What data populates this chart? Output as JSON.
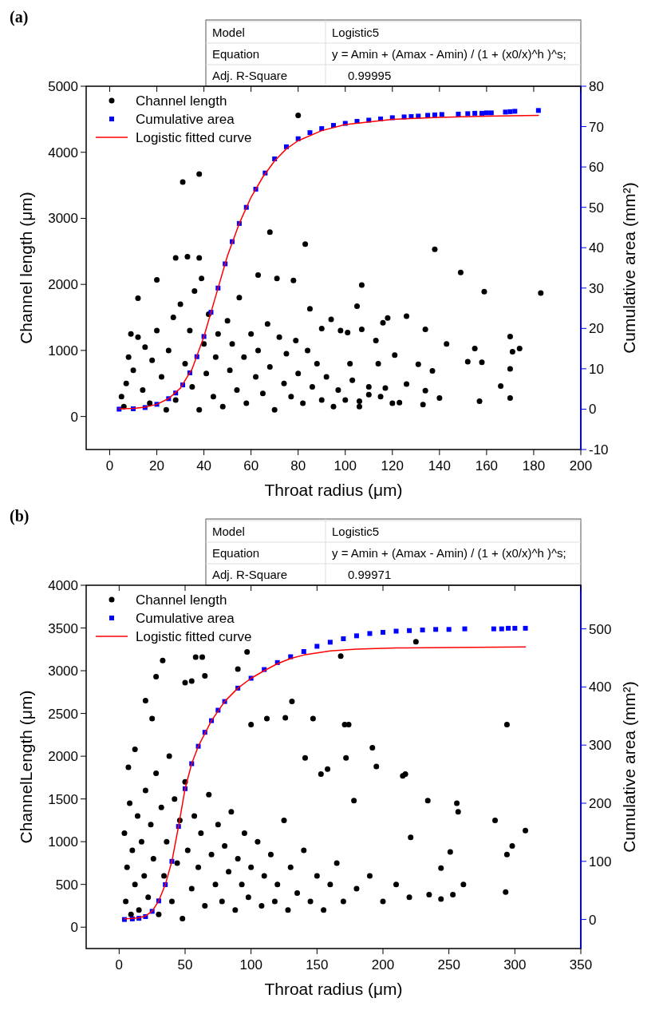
{
  "chart_data": [
    {
      "type": "scatter",
      "title": "(a)",
      "xlabel": "Throat radius (μm)",
      "ylabel": "Channel length (μm)",
      "y2label": "Cumulative area (mm²)",
      "annotations": [
        "Model",
        "Logistic5",
        "Equation",
        "y = Amin + (Amax - Amin) / (1 + (x0/x)^h )^s;",
        "Adj. R-Square",
        "0.99995"
      ],
      "xlim": [
        -10,
        200
      ],
      "xticks": [
        0,
        20,
        40,
        60,
        80,
        100,
        120,
        140,
        160,
        180,
        200
      ],
      "ylim": [
        -500,
        5000
      ],
      "yticks": [
        0,
        1000,
        2000,
        3000,
        4000,
        5000
      ],
      "y2lim": [
        -10,
        80
      ],
      "y2ticks": [
        -10,
        0,
        10,
        20,
        30,
        40,
        50,
        60,
        70,
        80
      ],
      "legend": "top left",
      "series": [
        {
          "name": "Channel length",
          "type": "scatter",
          "marker": "circle",
          "color": "#000000",
          "axis": "y",
          "x": [
            80,
            31,
            38,
            68,
            83,
            138,
            149,
            159,
            183,
            28,
            33,
            38,
            63,
            71,
            78,
            107,
            12,
            20,
            39,
            105,
            85,
            126,
            134,
            118,
            143,
            155,
            170,
            174,
            171,
            170,
            166,
            157,
            170,
            152,
            158,
            137,
            140,
            131,
            134,
            133,
            126,
            121,
            116,
            114,
            113,
            107,
            102,
            101,
            94,
            90,
            98,
            117,
            123,
            106,
            110,
            5,
            6,
            7,
            8,
            9,
            10,
            12,
            14,
            15,
            17,
            18,
            20,
            22,
            24,
            25,
            27,
            28,
            30,
            32,
            34,
            35,
            36,
            38,
            40,
            41,
            42,
            44,
            45,
            46,
            48,
            50,
            51,
            52,
            54,
            55,
            57,
            58,
            60,
            62,
            63,
            65,
            67,
            68,
            70,
            72,
            74,
            75,
            77,
            79,
            80,
            82,
            84,
            86,
            88,
            90,
            92,
            95,
            97,
            100,
            103,
            106,
            110,
            115,
            120
          ],
          "values": [
            4560,
            3550,
            3670,
            2790,
            2610,
            2530,
            2180,
            1890,
            1870,
            2400,
            2420,
            2400,
            2140,
            2090,
            2060,
            1990,
            1790,
            2070,
            2090,
            1670,
            1630,
            1520,
            1320,
            1490,
            1100,
            1030,
            1210,
            1030,
            980,
            720,
            460,
            230,
            280,
            830,
            820,
            690,
            280,
            790,
            390,
            180,
            490,
            930,
            1420,
            800,
            1150,
            1320,
            800,
            1270,
            1470,
            1330,
            1300,
            430,
            210,
            230,
            330,
            300,
            150,
            500,
            900,
            1250,
            700,
            1200,
            400,
            1050,
            200,
            850,
            1300,
            600,
            100,
            1000,
            1500,
            250,
            1700,
            800,
            1300,
            450,
            1900,
            100,
            1100,
            650,
            1550,
            300,
            900,
            1250,
            150,
            1450,
            700,
            1100,
            400,
            1800,
            900,
            200,
            1250,
            600,
            1000,
            350,
            1400,
            750,
            100,
            1200,
            500,
            950,
            300,
            1150,
            650,
            200,
            1000,
            450,
            800,
            250,
            600,
            150,
            400,
            250,
            550,
            150,
            450,
            300,
            200
          ]
        },
        {
          "name": "Cumulative area",
          "type": "scatter",
          "marker": "square",
          "color": "#0000ff",
          "axis": "y2",
          "x": [
            4,
            10,
            15,
            20,
            25,
            28,
            31,
            34,
            37,
            40,
            43,
            46,
            49,
            52,
            55,
            58,
            62,
            66,
            70,
            75,
            80,
            85,
            90,
            95,
            100,
            105,
            110,
            115,
            120,
            125,
            128,
            131,
            135,
            138,
            141,
            148,
            152,
            155,
            158,
            160,
            162,
            168,
            170,
            172,
            182
          ],
          "values": [
            0,
            0.1,
            0.4,
            1.2,
            2.6,
            4,
            6,
            9,
            13,
            18,
            24,
            30,
            36,
            41.5,
            46,
            50,
            54.5,
            58.5,
            62,
            65,
            67,
            68.5,
            69.5,
            70.3,
            70.8,
            71.3,
            71.6,
            71.9,
            72.2,
            72.4,
            72.5,
            72.6,
            72.8,
            72.9,
            73,
            73.1,
            73.2,
            73.3,
            73.3,
            73.4,
            73.4,
            73.6,
            73.7,
            73.8,
            74
          ]
        },
        {
          "name": "Logistic fitted curve",
          "type": "line",
          "marker": "none",
          "color": "#ff0000",
          "axis": "y2",
          "x": [
            4,
            10,
            15,
            20,
            25,
            30,
            35,
            40,
            45,
            50,
            55,
            60,
            65,
            70,
            75,
            80,
            90,
            100,
            120,
            140,
            160,
            182
          ],
          "values": [
            0.1,
            0.2,
            0.5,
            1.2,
            2.6,
            5.2,
            10,
            18,
            28,
            38,
            46,
            52.5,
            57.5,
            61.5,
            64.5,
            66.5,
            69,
            70.5,
            71.8,
            72.3,
            72.6,
            72.8
          ]
        }
      ]
    },
    {
      "type": "scatter",
      "title": "(b)",
      "xlabel": "Throat radius (μm)",
      "ylabel": "ChannelLength (μm)",
      "y2label": "Cumulative area (mm²)",
      "annotations": [
        "Model",
        "Logistic5",
        "Equation",
        "y = Amin + (Amax - Amin) / (1 + (x0/x)^h )^s;",
        "Adj. R-Square",
        "0.99971"
      ],
      "xlim": [
        -25,
        350
      ],
      "xticks": [
        0,
        50,
        100,
        150,
        200,
        250,
        300,
        350
      ],
      "ylim": [
        -250,
        4000
      ],
      "yticks": [
        0,
        500,
        1000,
        1500,
        2000,
        2500,
        3000,
        3500,
        4000
      ],
      "y2lim": [
        -50,
        575
      ],
      "y2ticks": [
        0,
        100,
        200,
        300,
        400,
        500
      ],
      "legend": "top left",
      "series": [
        {
          "name": "Channel length",
          "type": "scatter",
          "marker": "circle",
          "color": "#000000",
          "axis": "y",
          "x": [
            225,
            168,
            97,
            58,
            63,
            33,
            28,
            50,
            55,
            65,
            90,
            131,
            294,
            171,
            174,
            147,
            126,
            112,
            100,
            192,
            195,
            215,
            217,
            234,
            256,
            257,
            285,
            308,
            298,
            294,
            293,
            261,
            251,
            253,
            244,
            244,
            235,
            221,
            178,
            172,
            141,
            158,
            153,
            20,
            12,
            7,
            25,
            4,
            5,
            6,
            8,
            9,
            10,
            12,
            14,
            15,
            17,
            19,
            20,
            22,
            24,
            26,
            28,
            30,
            32,
            34,
            36,
            38,
            40,
            42,
            44,
            46,
            48,
            50,
            52,
            55,
            57,
            60,
            62,
            65,
            68,
            70,
            73,
            75,
            78,
            80,
            83,
            85,
            88,
            90,
            93,
            95,
            98,
            100,
            105,
            108,
            110,
            115,
            118,
            120,
            125,
            128,
            130,
            135,
            140,
            145,
            150,
            155,
            160,
            165,
            170,
            180,
            190,
            200,
            210,
            220
          ],
          "values": [
            3340,
            3170,
            3220,
            3160,
            3160,
            3120,
            2930,
            2860,
            2880,
            2940,
            3020,
            2640,
            2370,
            2370,
            2370,
            2440,
            2450,
            2440,
            2370,
            2100,
            1880,
            1770,
            1790,
            1480,
            1450,
            1350,
            1250,
            1130,
            950,
            850,
            410,
            500,
            880,
            380,
            330,
            690,
            380,
            1050,
            1480,
            1980,
            1980,
            1850,
            1790,
            2650,
            2080,
            1870,
            2440,
            1100,
            300,
            700,
            1450,
            150,
            900,
            500,
            1300,
            200,
            1000,
            600,
            1600,
            350,
            1200,
            800,
            1800,
            150,
            1400,
            600,
            1000,
            2000,
            300,
            1500,
            750,
            1250,
            100,
            1700,
            900,
            450,
            1300,
            700,
            1100,
            250,
            1550,
            850,
            500,
            1200,
            300,
            950,
            650,
            1350,
            200,
            800,
            500,
            1100,
            350,
            700,
            1000,
            250,
            600,
            850,
            300,
            500,
            1250,
            200,
            700,
            400,
            900,
            300,
            600,
            200,
            500,
            750,
            300,
            450,
            600,
            300,
            500,
            350
          ]
        },
        {
          "name": "Cumulative area",
          "type": "scatter",
          "marker": "square",
          "color": "#0000ff",
          "axis": "y2",
          "x": [
            4,
            10,
            15,
            20,
            25,
            30,
            35,
            40,
            45,
            50,
            55,
            60,
            65,
            70,
            75,
            80,
            90,
            100,
            110,
            120,
            130,
            140,
            150,
            160,
            170,
            180,
            190,
            200,
            210,
            220,
            230,
            240,
            250,
            262,
            284,
            290,
            295,
            300,
            308
          ],
          "values": [
            0,
            1,
            2,
            5,
            14,
            32,
            60,
            100,
            160,
            225,
            268,
            298,
            322,
            342,
            360,
            375,
            398,
            415,
            430,
            442,
            452,
            461,
            470,
            477,
            483,
            488,
            492,
            494,
            496,
            497,
            498,
            499,
            499,
            500,
            500,
            500,
            501,
            501,
            501
          ]
        },
        {
          "name": "Logistic fitted curve",
          "type": "line",
          "marker": "none",
          "color": "#ff0000",
          "axis": "y2",
          "x": [
            4,
            10,
            15,
            20,
            25,
            30,
            35,
            40,
            45,
            50,
            55,
            60,
            70,
            80,
            90,
            100,
            110,
            120,
            130,
            140,
            160,
            180,
            210,
            250,
            308
          ],
          "values": [
            1,
            2,
            3,
            6,
            14,
            32,
            60,
            100,
            160,
            225,
            268,
            298,
            342,
            375,
            398,
            415,
            428,
            440,
            449,
            455,
            462,
            465,
            467,
            468,
            469
          ]
        }
      ]
    }
  ]
}
